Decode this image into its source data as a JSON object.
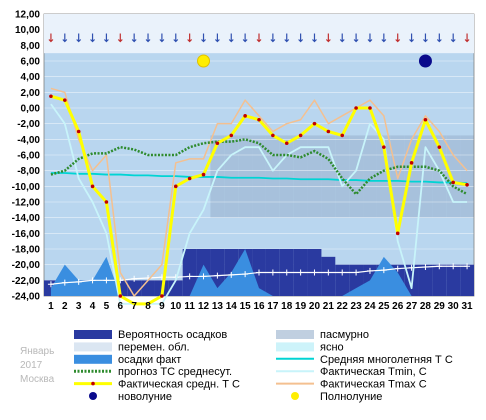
{
  "chart_data": {
    "type": "line",
    "x": [
      1,
      2,
      3,
      4,
      5,
      6,
      7,
      8,
      9,
      10,
      11,
      12,
      13,
      14,
      15,
      16,
      17,
      18,
      19,
      20,
      21,
      22,
      23,
      24,
      25,
      26,
      27,
      28,
      29,
      30,
      31
    ],
    "ylim": [
      -24,
      12
    ],
    "ytick_labels": [
      "12,00",
      "10,00",
      "8,00",
      "6,00",
      "4,00",
      "2,00",
      "0,00",
      "-2,00",
      "-4,00",
      "-6,00",
      "-8,00",
      "-10,00",
      "-12,00",
      "-14,00",
      "-16,00",
      "-18,00",
      "-20,00",
      "-22,00",
      "-24,00"
    ],
    "series": [
      {
        "name": "прогноз ТС среднесут.",
        "color": "#2e8b2e",
        "values": [
          -8.5,
          -8,
          -6.5,
          -5.8,
          -5.8,
          -5,
          -5.3,
          -6,
          -6,
          -6,
          -5,
          -4.5,
          -4.3,
          -4.3,
          -4,
          -4.5,
          -6,
          -6,
          -6.3,
          -5.5,
          -6.5,
          -9,
          -11,
          -9,
          -8,
          -7.5,
          -7.5,
          -7.5,
          -8,
          -10,
          -11
        ]
      },
      {
        "name": "Средняя многолетняя Т С",
        "color": "#00d4d4",
        "values": [
          -8.3,
          -8.3,
          -8.4,
          -8.4,
          -8.5,
          -8.5,
          -8.6,
          -8.6,
          -8.7,
          -8.7,
          -8.8,
          -8.8,
          -8.8,
          -8.9,
          -8.9,
          -8.9,
          -9,
          -9,
          -9.1,
          -9.1,
          -9.1,
          -9.2,
          -9.2,
          -9.3,
          -9.3,
          -9.3,
          -9.4,
          -9.4,
          -9.5,
          -9.5,
          -9.6
        ]
      },
      {
        "name": "Фактическая Tmin, С",
        "color": "#c8f4fa",
        "values": [
          0.5,
          -2,
          -9,
          -12,
          -16,
          -25,
          -27,
          -27,
          -25,
          -22,
          -16,
          -13,
          -8,
          -6,
          -5,
          -5,
          -8,
          -6,
          -5,
          -5,
          -5,
          -10,
          -8,
          -2,
          -4,
          -17,
          -23,
          -5,
          -8,
          -12,
          -12
        ]
      },
      {
        "name": "Фактическая Tmax C",
        "color": "#f4c090",
        "values": [
          2.5,
          2,
          -4,
          -8,
          -6,
          -21,
          -24,
          -22,
          -20,
          -7,
          -6.5,
          -6.5,
          -2,
          -2,
          1,
          -1,
          -3,
          -2,
          -1.5,
          1,
          -2,
          -1,
          0,
          1,
          -1,
          -9,
          -4,
          -1,
          -3,
          -6,
          -8
        ]
      },
      {
        "name": "Фактическая средн. Т С",
        "color": "#ffff00",
        "values": [
          1.5,
          1,
          -3,
          -10,
          -12,
          -24,
          -27,
          -25,
          -24,
          -10,
          -9,
          -8.5,
          -4.5,
          -3.5,
          -1,
          -1.5,
          -3.5,
          -4.5,
          -3.5,
          -2,
          -3,
          -3.5,
          0,
          0,
          -5,
          -16,
          -7,
          -1.5,
          -5,
          -9.5,
          -9.8
        ]
      },
      {
        "name": "осадки факт",
        "color": "#3a8ee0",
        "values": [
          -23,
          -20,
          -22,
          -22,
          -19,
          -24,
          -24,
          -24,
          -24,
          -24,
          -24,
          -20,
          -23,
          -21,
          -18,
          -23,
          -24,
          -24,
          -24,
          -24,
          -24,
          -24,
          -23,
          -22,
          -19,
          -21,
          -24,
          -24,
          -24,
          -24,
          -24
        ]
      },
      {
        "name": "Вероятность осадков",
        "color": "#2a3aa0",
        "values": [
          -22,
          -22,
          -22,
          -22,
          -22,
          -22,
          -22,
          -22,
          -22,
          -22,
          -18,
          -18,
          -18,
          -18,
          -18,
          -18,
          -18,
          -18,
          -18,
          -18,
          -19,
          -20,
          -20,
          -20,
          -20,
          -20,
          -20,
          -20,
          -20,
          -20,
          -20
        ]
      },
      {
        "name": "snow-line",
        "color": "#ffffff",
        "values": [
          -22.5,
          -22.3,
          -22.2,
          -22,
          -22,
          -22,
          -21.8,
          -21.7,
          -21.6,
          -21.6,
          -21.5,
          -21.5,
          -21.4,
          -21.3,
          -21.2,
          -21,
          -21,
          -21,
          -21,
          -21,
          -21,
          -21,
          -21,
          -20.8,
          -20.7,
          -20.5,
          -20.4,
          -20.3,
          -20.2,
          -20.2,
          -20.2
        ]
      }
    ],
    "cloud_overcast": [
      0,
      0,
      0,
      0,
      0,
      0,
      0,
      0,
      0,
      0,
      0,
      0,
      1,
      1,
      1,
      1,
      1,
      1,
      1,
      1,
      1,
      1,
      1,
      1,
      1,
      1,
      1,
      1,
      1,
      1,
      1
    ],
    "full_moon_day": 12,
    "new_moon_day": 28,
    "legend": [
      {
        "label": "Вероятность осадков",
        "kind": "box",
        "color": "#2a3aa0"
      },
      {
        "label": "пасмурно",
        "kind": "box",
        "color": "#c0cfe0"
      },
      {
        "label": "перемен. обл.",
        "kind": "box",
        "color": "#dbe6f2"
      },
      {
        "label": "ясно",
        "kind": "box",
        "color": "#cdf3fa"
      },
      {
        "label": "осадки факт",
        "kind": "box",
        "color": "#3a8ee0"
      },
      {
        "label": "Средняя многолетняя Т С",
        "kind": "line",
        "color": "#00d4d4"
      },
      {
        "label": "прогноз ТС среднесут.",
        "kind": "dots",
        "color": "#2e8b2e"
      },
      {
        "label": "Фактическая Tmin, С",
        "kind": "line",
        "color": "#c8f4fa"
      },
      {
        "label": "Фактическая средн. Т С",
        "kind": "marker",
        "color": "#ffff00"
      },
      {
        "label": "Фактическая Tmax С",
        "kind": "line",
        "color": "#f4c090"
      },
      {
        "label": "новолуние",
        "kind": "dot",
        "color": "#0a0a8c"
      },
      {
        "label": "Полнолуние",
        "kind": "dot",
        "color": "#ffee00"
      }
    ],
    "side_labels": [
      "Январь",
      "2017",
      "Москва"
    ]
  }
}
